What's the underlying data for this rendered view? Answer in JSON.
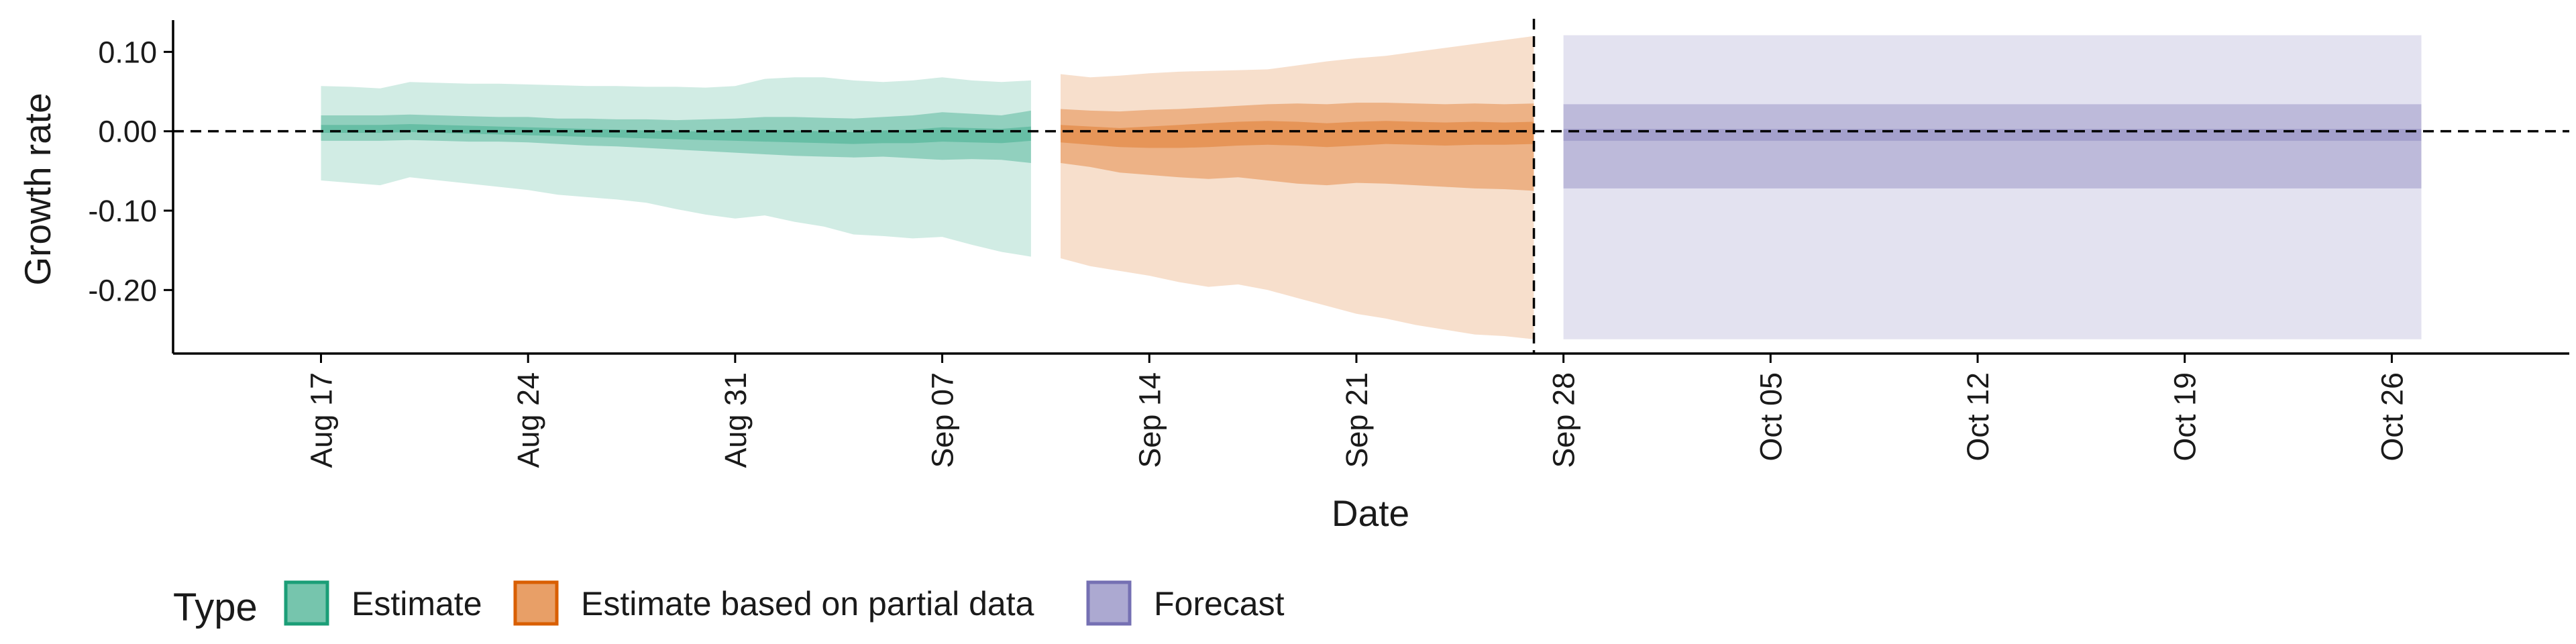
{
  "chart_data": {
    "type": "area",
    "xlabel": "Date",
    "ylabel": "Growth rate",
    "x_range": [
      "2020-08-12",
      "2020-11-01"
    ],
    "ylim": [
      -0.28,
      0.14
    ],
    "y_ticks": [
      0.1,
      0.0,
      -0.1,
      -0.2
    ],
    "y_tick_labels": [
      "0.10",
      "0.00",
      "-0.10",
      "-0.20"
    ],
    "x_ticks": [
      "2020-08-17",
      "2020-08-24",
      "2020-08-31",
      "2020-09-07",
      "2020-09-14",
      "2020-09-21",
      "2020-09-28",
      "2020-10-05",
      "2020-10-12",
      "2020-10-19",
      "2020-10-26"
    ],
    "x_tick_labels": [
      "Aug 17",
      "Aug 24",
      "Aug 31",
      "Sep 07",
      "Sep 14",
      "Sep 21",
      "Sep 28",
      "Oct 05",
      "Oct 12",
      "Oct 19",
      "Oct 26"
    ],
    "reference_line_y": 0.0,
    "forecast_start_line_x": "2020-09-27",
    "grid": false,
    "legend_position": "bottom",
    "legend_title": "Type",
    "series": [
      {
        "name": "Estimate",
        "color": "#1b9e77",
        "x": [
          "2020-08-17",
          "2020-08-18",
          "2020-08-19",
          "2020-08-20",
          "2020-08-21",
          "2020-08-22",
          "2020-08-23",
          "2020-08-24",
          "2020-08-25",
          "2020-08-26",
          "2020-08-27",
          "2020-08-28",
          "2020-08-29",
          "2020-08-30",
          "2020-08-31",
          "2020-09-01",
          "2020-09-02",
          "2020-09-03",
          "2020-09-04",
          "2020-09-05",
          "2020-09-06",
          "2020-09-07",
          "2020-09-08",
          "2020-09-09",
          "2020-09-10"
        ],
        "ci90_upper": [
          0.057,
          0.056,
          0.054,
          0.062,
          0.061,
          0.06,
          0.06,
          0.059,
          0.058,
          0.057,
          0.057,
          0.056,
          0.056,
          0.055,
          0.057,
          0.066,
          0.068,
          0.068,
          0.064,
          0.062,
          0.064,
          0.068,
          0.064,
          0.062,
          0.064
        ],
        "ci90_lower": [
          -0.062,
          -0.065,
          -0.068,
          -0.058,
          -0.062,
          -0.066,
          -0.07,
          -0.074,
          -0.08,
          -0.083,
          -0.086,
          -0.09,
          -0.098,
          -0.105,
          -0.11,
          -0.106,
          -0.114,
          -0.12,
          -0.13,
          -0.132,
          -0.135,
          -0.133,
          -0.143,
          -0.152,
          -0.158
        ],
        "ci50_upper": [
          0.02,
          0.02,
          0.02,
          0.021,
          0.02,
          0.019,
          0.018,
          0.018,
          0.016,
          0.016,
          0.015,
          0.015,
          0.014,
          0.015,
          0.016,
          0.018,
          0.018,
          0.017,
          0.016,
          0.018,
          0.02,
          0.024,
          0.022,
          0.02,
          0.026
        ],
        "ci50_lower": [
          -0.012,
          -0.012,
          -0.012,
          -0.011,
          -0.012,
          -0.013,
          -0.013,
          -0.014,
          -0.016,
          -0.018,
          -0.019,
          -0.021,
          -0.023,
          -0.025,
          -0.027,
          -0.029,
          -0.031,
          -0.032,
          -0.033,
          -0.032,
          -0.034,
          -0.036,
          -0.035,
          -0.036,
          -0.04
        ],
        "ci20_upper": [
          0.008,
          0.008,
          0.008,
          0.009,
          0.008,
          0.007,
          0.006,
          0.005,
          0.004,
          0.003,
          0.002,
          0.001,
          0.0,
          0.0,
          0.001,
          0.002,
          0.001,
          0.0,
          -0.001,
          0.001,
          0.002,
          0.005,
          0.004,
          0.003,
          0.006
        ],
        "ci20_lower": [
          -0.002,
          -0.002,
          -0.002,
          -0.001,
          -0.002,
          -0.003,
          -0.004,
          -0.005,
          -0.006,
          -0.007,
          -0.008,
          -0.009,
          -0.01,
          -0.011,
          -0.012,
          -0.013,
          -0.014,
          -0.015,
          -0.016,
          -0.015,
          -0.015,
          -0.013,
          -0.014,
          -0.015,
          -0.012
        ]
      },
      {
        "name": "Estimate based on partial data",
        "color": "#d95f02",
        "x": [
          "2020-09-11",
          "2020-09-12",
          "2020-09-13",
          "2020-09-14",
          "2020-09-15",
          "2020-09-16",
          "2020-09-17",
          "2020-09-18",
          "2020-09-19",
          "2020-09-20",
          "2020-09-21",
          "2020-09-22",
          "2020-09-23",
          "2020-09-24",
          "2020-09-25",
          "2020-09-26",
          "2020-09-27"
        ],
        "ci90_upper": [
          0.072,
          0.068,
          0.07,
          0.073,
          0.075,
          0.076,
          0.077,
          0.078,
          0.083,
          0.088,
          0.092,
          0.095,
          0.1,
          0.105,
          0.11,
          0.115,
          0.12
        ],
        "ci90_lower": [
          -0.16,
          -0.17,
          -0.176,
          -0.182,
          -0.19,
          -0.196,
          -0.193,
          -0.2,
          -0.21,
          -0.22,
          -0.23,
          -0.236,
          -0.244,
          -0.25,
          -0.256,
          -0.258,
          -0.262
        ],
        "ci50_upper": [
          0.028,
          0.026,
          0.025,
          0.027,
          0.028,
          0.03,
          0.032,
          0.034,
          0.035,
          0.034,
          0.036,
          0.036,
          0.035,
          0.034,
          0.035,
          0.034,
          0.035
        ],
        "ci50_lower": [
          -0.04,
          -0.045,
          -0.052,
          -0.055,
          -0.058,
          -0.06,
          -0.058,
          -0.062,
          -0.066,
          -0.068,
          -0.065,
          -0.066,
          -0.068,
          -0.07,
          -0.072,
          -0.073,
          -0.075
        ],
        "ci20_upper": [
          0.008,
          0.006,
          0.004,
          0.006,
          0.008,
          0.01,
          0.012,
          0.013,
          0.012,
          0.01,
          0.012,
          0.013,
          0.012,
          0.011,
          0.012,
          0.011,
          0.012
        ],
        "ci20_lower": [
          -0.014,
          -0.017,
          -0.02,
          -0.021,
          -0.021,
          -0.02,
          -0.018,
          -0.017,
          -0.018,
          -0.02,
          -0.018,
          -0.016,
          -0.017,
          -0.018,
          -0.017,
          -0.017,
          -0.016
        ]
      },
      {
        "name": "Forecast",
        "color": "#7570b3",
        "x": [
          "2020-09-28",
          "2020-10-27"
        ],
        "ci90_upper": [
          0.121,
          0.121
        ],
        "ci90_lower": [
          -0.262,
          -0.262
        ],
        "ci50_upper": [
          0.034,
          0.034
        ],
        "ci50_lower": [
          -0.072,
          -0.072
        ],
        "ci20_upper": [
          0.003,
          0.003
        ],
        "ci20_lower": [
          -0.012,
          -0.012
        ]
      }
    ]
  }
}
